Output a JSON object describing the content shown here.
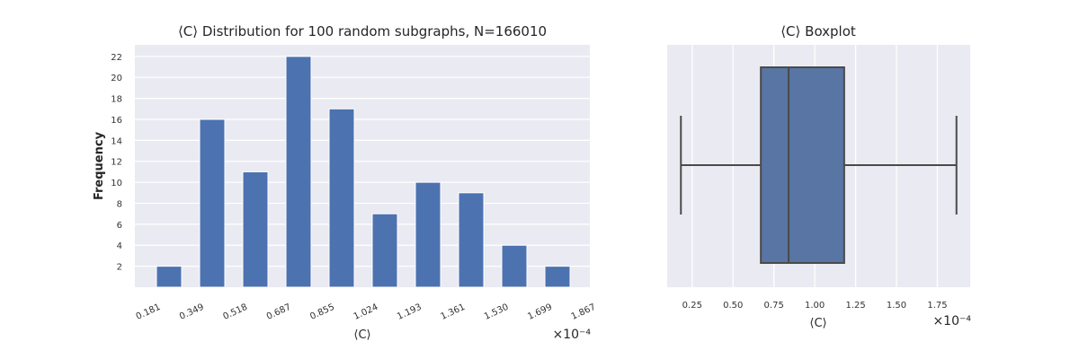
{
  "chart_data": [
    {
      "type": "bar",
      "title": "⟨C⟩ Distribution for 100 random subgraphs, N=166010",
      "xlabel": "⟨C⟩",
      "ylabel": "Frequency",
      "x_offset_label": "×10⁻⁴",
      "x_tick_labels": [
        "0.181",
        "0.349",
        "0.518",
        "0.687",
        "0.855",
        "1.024",
        "1.193",
        "1.361",
        "1.530",
        "1.699",
        "1.867"
      ],
      "categories": [
        "0.181–0.349",
        "0.349–0.518",
        "0.518–0.687",
        "0.687–0.855",
        "0.855–1.024",
        "1.024–1.193",
        "1.193–1.361",
        "1.361–1.530",
        "1.530–1.699",
        "1.699–1.867"
      ],
      "values": [
        2,
        16,
        11,
        22,
        17,
        7,
        10,
        9,
        4,
        2
      ],
      "y_ticks": [
        "2",
        "4",
        "6",
        "8",
        "10",
        "12",
        "14",
        "16",
        "18",
        "20",
        "22"
      ],
      "ylim": [
        0,
        23.1
      ],
      "grid": true,
      "bar_color": "#4c72b0"
    },
    {
      "type": "box",
      "title": "⟨C⟩ Boxplot",
      "xlabel": "⟨C⟩",
      "x_offset_label": "×10⁻⁴",
      "x_ticks": [
        "0.25",
        "0.50",
        "0.75",
        "1.00",
        "1.25",
        "1.50",
        "1.75"
      ],
      "x_tick_values": [
        0.25,
        0.5,
        0.75,
        1.0,
        1.25,
        1.5,
        1.75
      ],
      "xlim": [
        0.097,
        1.951
      ],
      "whisker_low": 0.181,
      "q1": 0.67,
      "median": 0.84,
      "q3": 1.18,
      "whisker_high": 1.867,
      "grid": true,
      "box_color": "#5875a4"
    }
  ]
}
